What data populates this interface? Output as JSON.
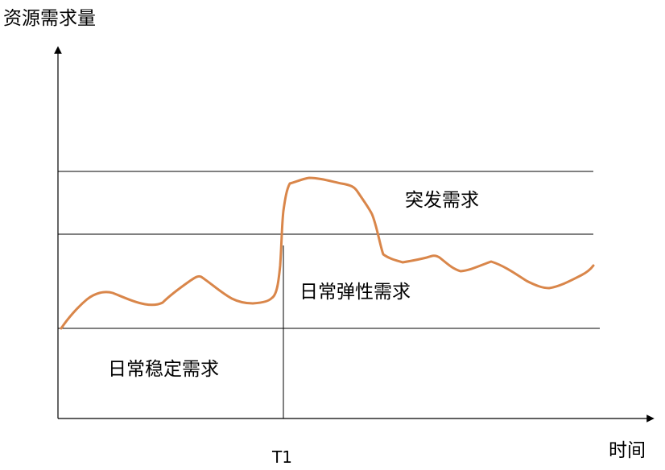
{
  "axes": {
    "y_title": "资源需求量",
    "x_title": "时间",
    "x_marker": "T1"
  },
  "regions": {
    "burst": "突发需求",
    "daily_elastic": "日常弹性需求",
    "daily_stable": "日常稳定需求"
  },
  "colors": {
    "curve": "#D9864A",
    "lines": "#000000"
  }
}
